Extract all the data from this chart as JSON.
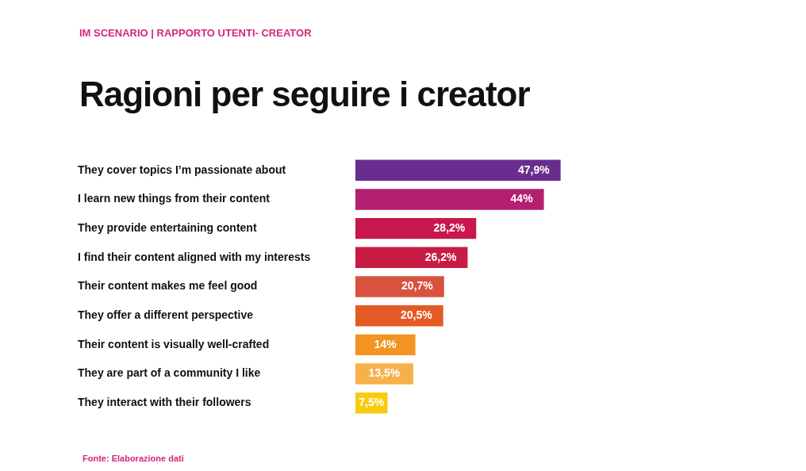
{
  "chart_data": {
    "type": "bar",
    "orientation": "horizontal",
    "subtitle": "IM SCENARIO | RAPPORTO UTENTI- CREATOR",
    "title": "Ragioni per seguire i creator",
    "categories": [
      "They cover topics I’m passionate about",
      "I learn new things from their content",
      "They provide entertaining content",
      "I find their content aligned with my interests",
      "Their content makes me feel good",
      "They offer a different perspective",
      "Their content is visually well-crafted",
      "They are part of a community I like",
      "They interact with their followers"
    ],
    "values": [
      47.9,
      44,
      28.2,
      26.2,
      20.7,
      20.5,
      14,
      13.5,
      7.5
    ],
    "value_labels": [
      "47,9%",
      "44%",
      "28,2%",
      "26,2%",
      "20,7%",
      "20,5%",
      "14%",
      "13,5%",
      "7,5%"
    ],
    "colors": [
      "#682d8e",
      "#b3206f",
      "#c8174f",
      "#c81c45",
      "#d9523f",
      "#e45a25",
      "#f29422",
      "#f7b14b",
      "#f7cc0e"
    ],
    "grid": false,
    "legend": false,
    "annotations": [
      "Fonte: Elaborazione dati"
    ]
  }
}
